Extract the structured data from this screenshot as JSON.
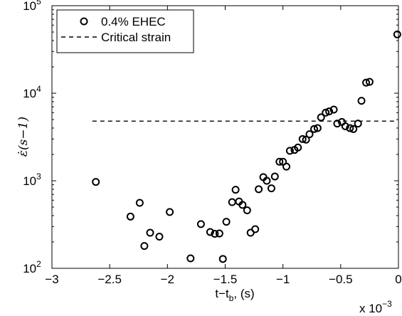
{
  "chart_data": {
    "type": "scatter",
    "xlabel": "t−t_b, (s)",
    "ylabel": "ε̇(s−1)",
    "x_scale_label": "x 10−3",
    "xlim": [
      -3,
      0
    ],
    "ylim": [
      100,
      100000
    ],
    "yscale": "log",
    "grid": false,
    "legend_placement": "top-left",
    "x_ticks": [
      {
        "value": -3,
        "label": "−3"
      },
      {
        "value": -2.5,
        "label": "−2.5"
      },
      {
        "value": -2,
        "label": "−2"
      },
      {
        "value": -1.5,
        "label": "−1.5"
      },
      {
        "value": -1,
        "label": "−1"
      },
      {
        "value": -0.5,
        "label": "−0.5"
      },
      {
        "value": 0,
        "label": "0"
      }
    ],
    "y_ticks": [
      {
        "value": 100,
        "base": "10",
        "exp": "2"
      },
      {
        "value": 1000,
        "base": "10",
        "exp": "3"
      },
      {
        "value": 10000,
        "base": "10",
        "exp": "4"
      },
      {
        "value": 100000,
        "base": "10",
        "exp": "5"
      }
    ],
    "series": [
      {
        "name": "0.4% EHEC",
        "marker": "open-circle",
        "color": "#000000",
        "points": [
          [
            -2.62,
            970
          ],
          [
            -2.32,
            390
          ],
          [
            -2.24,
            560
          ],
          [
            -2.2,
            180
          ],
          [
            -2.15,
            255
          ],
          [
            -2.07,
            230
          ],
          [
            -1.98,
            440
          ],
          [
            -1.8,
            130
          ],
          [
            -1.71,
            320
          ],
          [
            -1.63,
            260
          ],
          [
            -1.59,
            248
          ],
          [
            -1.55,
            250
          ],
          [
            -1.52,
            128
          ],
          [
            -1.49,
            340
          ],
          [
            -1.44,
            570
          ],
          [
            -1.41,
            790
          ],
          [
            -1.38,
            580
          ],
          [
            -1.35,
            530
          ],
          [
            -1.31,
            460
          ],
          [
            -1.28,
            255
          ],
          [
            -1.24,
            280
          ],
          [
            -1.21,
            800
          ],
          [
            -1.17,
            1100
          ],
          [
            -1.14,
            1000
          ],
          [
            -1.1,
            820
          ],
          [
            -1.07,
            1120
          ],
          [
            -1.03,
            1650
          ],
          [
            -1.0,
            1650
          ],
          [
            -0.97,
            1450
          ],
          [
            -0.94,
            2200
          ],
          [
            -0.9,
            2250
          ],
          [
            -0.87,
            2400
          ],
          [
            -0.83,
            3000
          ],
          [
            -0.8,
            2950
          ],
          [
            -0.77,
            3400
          ],
          [
            -0.73,
            3900
          ],
          [
            -0.7,
            4000
          ],
          [
            -0.67,
            5300
          ],
          [
            -0.63,
            6000
          ],
          [
            -0.6,
            6200
          ],
          [
            -0.56,
            6500
          ],
          [
            -0.53,
            4500
          ],
          [
            -0.49,
            4700
          ],
          [
            -0.46,
            4200
          ],
          [
            -0.42,
            4000
          ],
          [
            -0.39,
            3900
          ],
          [
            -0.35,
            4500
          ],
          [
            -0.32,
            8200
          ],
          [
            -0.28,
            13200
          ],
          [
            -0.25,
            13500
          ],
          [
            -0.01,
            47000
          ]
        ]
      },
      {
        "name": "Critical strain",
        "style": "dashed",
        "color": "#000000",
        "x_range": [
          -2.65,
          -0.02
        ],
        "y": 4800
      }
    ]
  }
}
